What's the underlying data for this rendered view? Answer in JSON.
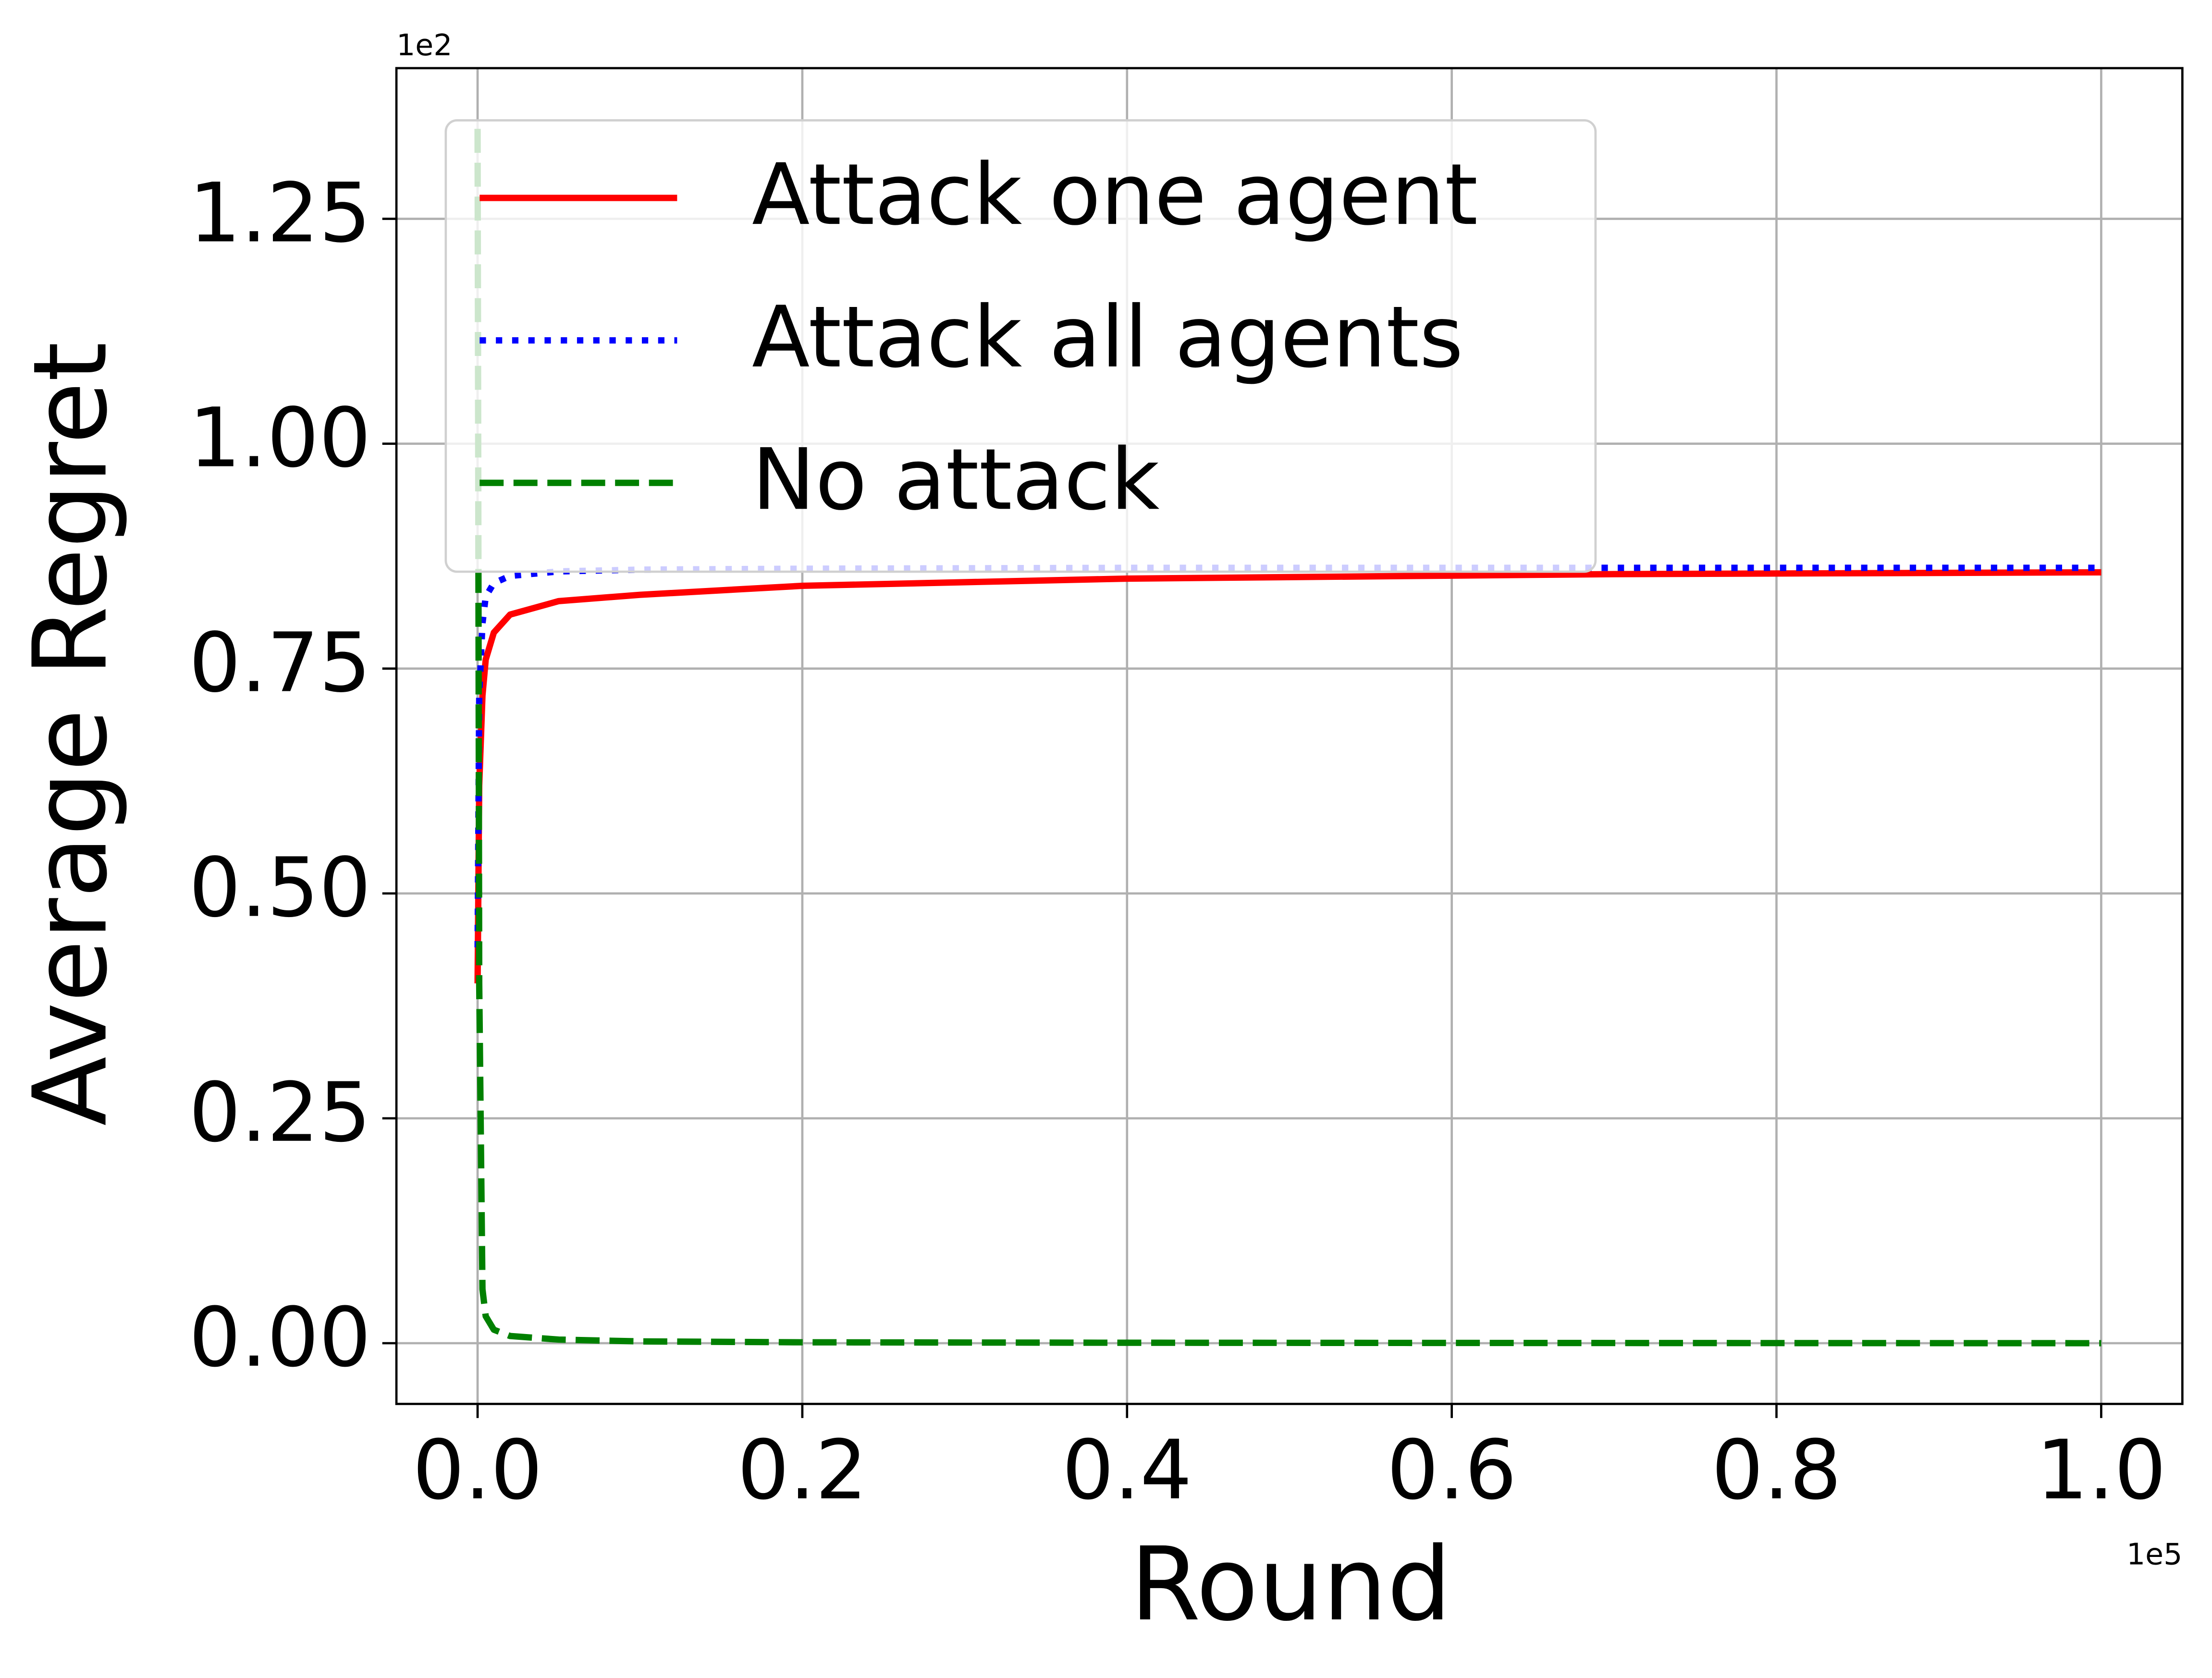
{
  "chart_data": {
    "type": "line",
    "x_label": "Round",
    "y_label": "Average Regret",
    "x_offset_label": "1e5",
    "y_offset_label": "1e2",
    "x": [
      0,
      0.001,
      0.003,
      0.005,
      0.01,
      0.02,
      0.05,
      0.1,
      0.2,
      0.4,
      0.7,
      1.0
    ],
    "series": [
      {
        "name": "Attack one agent",
        "color": "#ff0000",
        "linestyle": "solid",
        "values": [
          0.4,
          0.62,
          0.72,
          0.76,
          0.79,
          0.81,
          0.825,
          0.832,
          0.842,
          0.85,
          0.855,
          0.857
        ]
      },
      {
        "name": "Attack all agents",
        "color": "#0000ff",
        "linestyle": "dotted",
        "values": [
          0.44,
          0.72,
          0.8,
          0.83,
          0.845,
          0.853,
          0.858,
          0.86,
          0.861,
          0.862,
          0.862,
          0.862
        ]
      },
      {
        "name": "No attack",
        "color": "#008000",
        "linestyle": "dashed",
        "values": [
          1.35,
          0.4,
          0.06,
          0.03,
          0.015,
          0.008,
          0.004,
          0.002,
          0.001,
          0.0005,
          0.0002,
          0
        ]
      }
    ],
    "xlim": [
      -0.05,
      1.05
    ],
    "ylim": [
      -0.0675,
      1.4175
    ],
    "xticks": [
      {
        "value": 0,
        "label": "0.0"
      },
      {
        "value": 0.2,
        "label": "0.2"
      },
      {
        "value": 0.4,
        "label": "0.4"
      },
      {
        "value": 0.6,
        "label": "0.6"
      },
      {
        "value": 0.8,
        "label": "0.8"
      },
      {
        "value": 1.0,
        "label": "1.0"
      }
    ],
    "yticks": [
      {
        "value": 0,
        "label": "0.00"
      },
      {
        "value": 0.25,
        "label": "0.25"
      },
      {
        "value": 0.5,
        "label": "0.50"
      },
      {
        "value": 0.75,
        "label": "0.75"
      },
      {
        "value": 1.0,
        "label": "1.00"
      },
      {
        "value": 1.25,
        "label": "1.25"
      }
    ],
    "grid": true,
    "legend": "upper left"
  }
}
